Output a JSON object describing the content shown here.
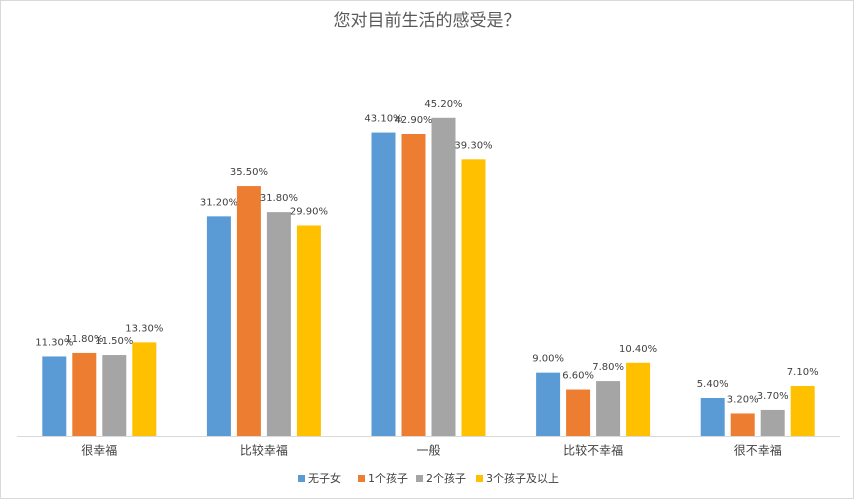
{
  "chart_data": {
    "type": "bar",
    "title": "您对目前生活的感受是？",
    "categories": [
      "很幸福",
      "比较幸福",
      "一般",
      "比较不幸福",
      "很不幸福"
    ],
    "series": [
      {
        "name": "无子女",
        "color": "#5b9bd5",
        "values": [
          11.3,
          31.2,
          43.1,
          9.0,
          5.4
        ],
        "value_labels": [
          "11.30%",
          "31.20%",
          "43.10%",
          "9.00%",
          "5.40%"
        ]
      },
      {
        "name": "1个孩子",
        "color": "#ed7d31",
        "values": [
          11.8,
          35.5,
          42.9,
          6.6,
          3.2
        ],
        "value_labels": [
          "11.80%",
          "35.50%",
          "42.90%",
          "6.60%",
          "3.20%"
        ]
      },
      {
        "name": "2个孩子",
        "color": "#a5a5a5",
        "values": [
          11.5,
          31.8,
          45.2,
          7.8,
          3.7
        ],
        "value_labels": [
          "11.50%",
          "31.80%",
          "45.20%",
          "7.80%",
          "3.70%"
        ]
      },
      {
        "name": "3个孩子及以上",
        "color": "#ffc000",
        "values": [
          13.3,
          29.9,
          39.3,
          10.4,
          7.1
        ],
        "value_labels": [
          "13.30%",
          "29.90%",
          "39.30%",
          "10.40%",
          "7.10%"
        ]
      }
    ]
  }
}
